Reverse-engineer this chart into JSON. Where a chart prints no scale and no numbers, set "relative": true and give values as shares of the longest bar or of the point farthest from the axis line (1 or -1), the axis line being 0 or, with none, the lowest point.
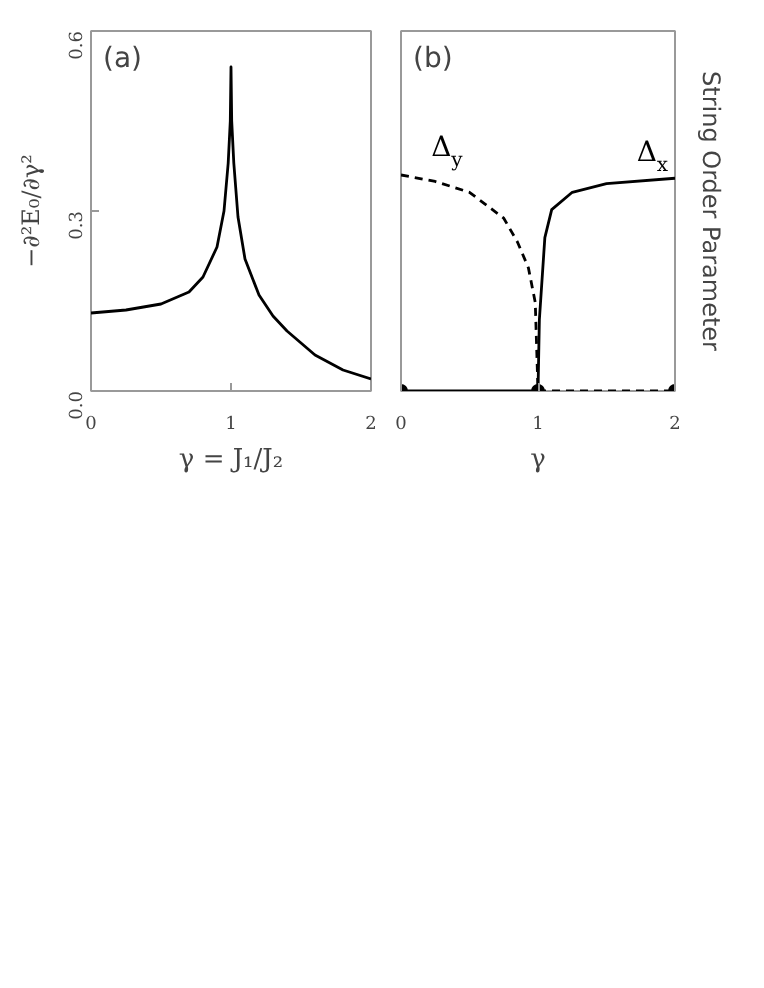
{
  "chart_data": [
    {
      "type": "line",
      "annotations": [
        "(a)"
      ],
      "xlabel": "γ = J₁/J₂",
      "ylabel": "−∂²E₀/∂γ²",
      "xlim": [
        0,
        2
      ],
      "ylim": [
        0,
        0.6
      ],
      "xticks": [
        0,
        1,
        2
      ],
      "yticks": [
        {
          "value": 0,
          "label": "0.0"
        },
        0.3,
        0.6
      ],
      "grid": false,
      "series": [
        {
          "color": "#000000",
          "x": [
            0,
            0.25,
            0.5,
            0.7,
            0.8,
            0.9,
            0.95,
            0.98,
            0.995,
            1.0,
            1.005,
            1.02,
            1.05,
            1.1,
            1.2,
            1.3,
            1.4,
            1.6,
            1.8,
            2.0
          ],
          "values": [
            0.13,
            0.135,
            0.145,
            0.165,
            0.19,
            0.24,
            0.3,
            0.38,
            0.45,
            0.54,
            0.45,
            0.38,
            0.29,
            0.22,
            0.16,
            0.125,
            0.1,
            0.06,
            0.035,
            0.02
          ]
        }
      ]
    },
    {
      "type": "line",
      "relative": true,
      "annotations": [
        "(b)"
      ],
      "xlabel": "γ",
      "y2label": "String Order Parameter",
      "xlim": [
        0,
        2
      ],
      "xticks": [
        0,
        1,
        2
      ],
      "tick_labels": "x",
      "grid": false,
      "series": [
        {
          "name": "Δ$_{y}$",
          "color": "#000000",
          "line_style": "dashed",
          "x": [
            0,
            0.25,
            0.5,
            0.75,
            0.85,
            0.93,
            0.98,
            1.0
          ],
          "values": [
            1.0,
            0.97,
            0.92,
            0.8,
            0.69,
            0.57,
            0.41,
            0
          ]
        },
        {
          "name": "Δ$_{x}$",
          "color": "#000000",
          "line_style": "solid",
          "x": [
            1.0,
            1.01,
            1.05,
            1.1,
            1.25,
            1.5,
            2.0
          ],
          "values": [
            0,
            0.33,
            0.71,
            0.84,
            0.92,
            0.96,
            0.985
          ]
        },
        {
          "color": "#000000",
          "line_style": "solid",
          "x": [
            0,
            1
          ],
          "values": [
            0,
            0
          ]
        },
        {
          "color": "#000000",
          "line_style": "dashed",
          "x": [
            1,
            2
          ],
          "values": [
            0,
            0
          ]
        },
        {
          "type": "scatter",
          "marker": "circle",
          "color": "#000000",
          "x": [
            0,
            1,
            2
          ],
          "values": [
            0,
            0,
            0
          ]
        }
      ]
    }
  ]
}
